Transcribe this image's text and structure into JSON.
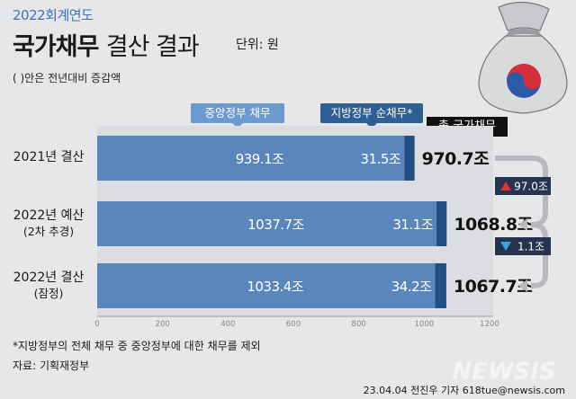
{
  "header": {
    "subtitle": "2022회계연도",
    "title_bold": "국가채무",
    "title_light": "결산 결과",
    "unit": "단위: 원",
    "paren_note": "( )안은 전년대비 증감액"
  },
  "legend": {
    "central": "중앙정부 채무",
    "local": "지방정부 순채무*",
    "total": "총 국가채무"
  },
  "chart_data": {
    "type": "bar",
    "orientation": "horizontal",
    "stacked": true,
    "categories": [
      "2021년 결산",
      "2022년 예산 (2차 추경)",
      "2022년 결산 (잠정)"
    ],
    "category_lines": [
      [
        "2021년 결산"
      ],
      [
        "2022년 예산",
        "(2차 추경)"
      ],
      [
        "2022년 결산",
        "(잠정)"
      ]
    ],
    "series": [
      {
        "name": "중앙정부 채무",
        "values": [
          939.1,
          1037.7,
          1033.4
        ],
        "labels": [
          "939.1조",
          "1037.7조",
          "1033.4조"
        ],
        "color": "#5a86bb"
      },
      {
        "name": "지방정부 순채무*",
        "values": [
          31.5,
          31.1,
          34.2
        ],
        "labels": [
          "31.5조",
          "31.1조",
          "34.2조"
        ],
        "color": "#1f4e80"
      }
    ],
    "totals": [
      "970.7조",
      "1068.8조",
      "1067.7조"
    ],
    "changes": [
      {
        "direction": "up",
        "label": "97.0조",
        "color": "#e03030"
      },
      {
        "direction": "down",
        "label": "1.1조",
        "color": "#3aa0e0"
      }
    ],
    "xlim": [
      0,
      1200
    ],
    "xticks": [
      0,
      200,
      400,
      600,
      800,
      1000,
      1200
    ],
    "grid": false
  },
  "footnote": "*지방정부의 전체 채무 중 중앙정부에 대한 채무를 제외",
  "source": "자료: 기획재정부",
  "credit": "23.04.04 전진우 기자 618tue@newsis.com",
  "watermark": "NEWSIS",
  "icons": {
    "bag": "money-bag-icon",
    "emblem": "taegeuk-emblem-icon"
  }
}
